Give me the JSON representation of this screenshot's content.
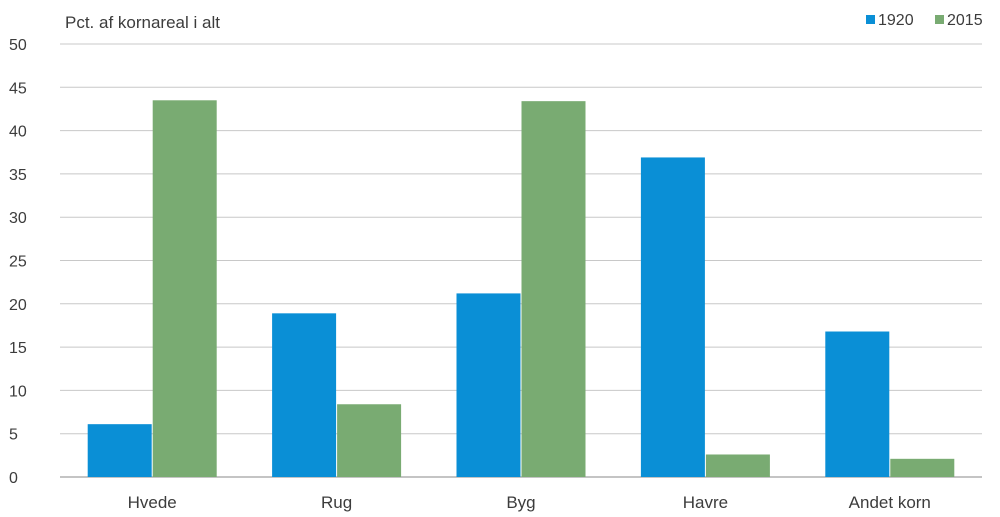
{
  "chart_data": {
    "type": "bar",
    "ylabel": "Pct. af kornareal i alt",
    "categories": [
      "Hvede",
      "Rug",
      "Byg",
      "Havre",
      "Andet korn"
    ],
    "series": [
      {
        "name": "1920",
        "color": "#0a8fd6",
        "values": [
          6.1,
          18.9,
          21.2,
          36.9,
          16.8
        ]
      },
      {
        "name": "2015",
        "color": "#79ab72",
        "values": [
          43.5,
          8.4,
          43.4,
          2.6,
          2.1
        ]
      }
    ],
    "ylim": [
      0,
      50
    ],
    "yticks": [
      0,
      5,
      10,
      15,
      20,
      25,
      30,
      35,
      40,
      45,
      50
    ],
    "grid": true,
    "legend_position": "top-right"
  }
}
